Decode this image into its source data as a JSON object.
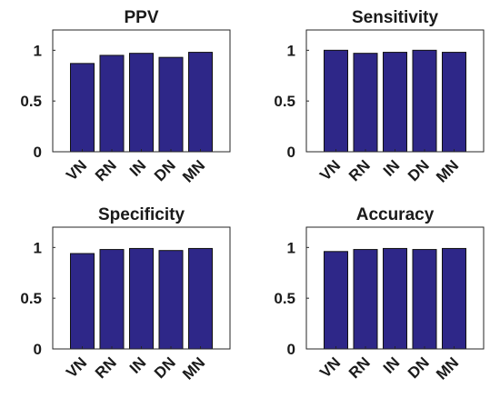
{
  "colors": {
    "bar": "#2e2788"
  },
  "chart_data": [
    {
      "type": "bar",
      "title": "PPV",
      "categories": [
        "VN",
        "RN",
        "IN",
        "DN",
        "MN"
      ],
      "values": [
        0.87,
        0.95,
        0.97,
        0.93,
        0.98
      ],
      "ylim": [
        0,
        1.2
      ],
      "yticks": [
        "0",
        "0.5",
        "1"
      ],
      "grid": false
    },
    {
      "type": "bar",
      "title": "Sensitivity",
      "categories": [
        "VN",
        "RN",
        "IN",
        "DN",
        "MN"
      ],
      "values": [
        1.0,
        0.97,
        0.98,
        1.0,
        0.98
      ],
      "ylim": [
        0,
        1.2
      ],
      "yticks": [
        "0",
        "0.5",
        "1"
      ],
      "grid": false
    },
    {
      "type": "bar",
      "title": "Specificity",
      "categories": [
        "VN",
        "RN",
        "IN",
        "DN",
        "MN"
      ],
      "values": [
        0.94,
        0.98,
        0.99,
        0.97,
        0.99
      ],
      "ylim": [
        0,
        1.2
      ],
      "yticks": [
        "0",
        "0.5",
        "1"
      ],
      "grid": false
    },
    {
      "type": "bar",
      "title": "Accuracy",
      "categories": [
        "VN",
        "RN",
        "IN",
        "DN",
        "MN"
      ],
      "values": [
        0.96,
        0.98,
        0.99,
        0.98,
        0.99
      ],
      "ylim": [
        0,
        1.2
      ],
      "yticks": [
        "0",
        "0.5",
        "1"
      ],
      "grid": false
    }
  ]
}
